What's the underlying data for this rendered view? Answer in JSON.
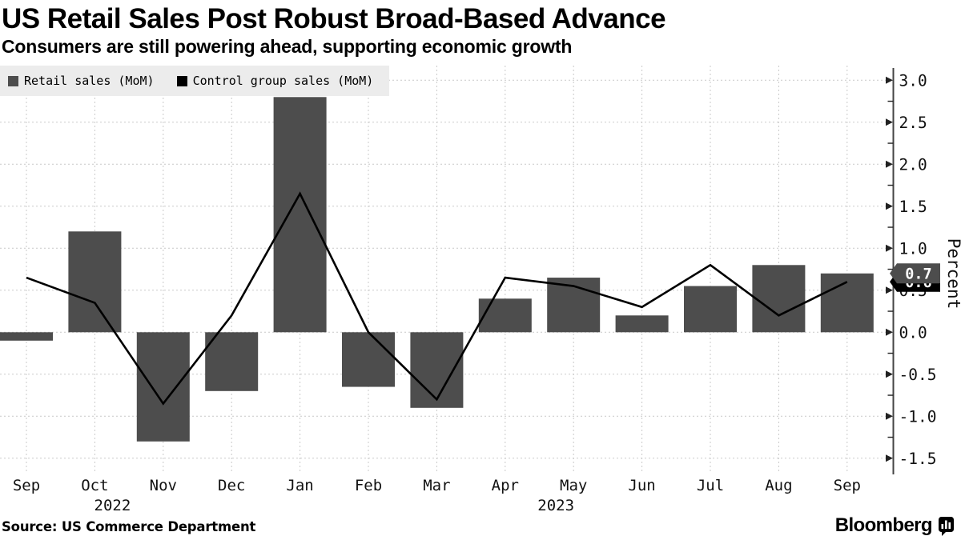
{
  "chart_data": {
    "type": "bar+line",
    "title": "US Retail Sales Post Robust Broad-Based Advance",
    "subtitle": "Consumers are still powering ahead, supporting economic growth",
    "categories": [
      "Sep",
      "Oct",
      "Nov",
      "Dec",
      "Jan",
      "Feb",
      "Mar",
      "Apr",
      "May",
      "Jun",
      "Jul",
      "Aug",
      "Sep"
    ],
    "year_labels": [
      {
        "text": "2022",
        "month_index": 1
      },
      {
        "text": "2023",
        "month_index": 8
      }
    ],
    "series": [
      {
        "name": "Retail sales (MoM)",
        "type": "bar",
        "color": "#4d4d4d",
        "values": [
          -0.1,
          1.2,
          -1.3,
          -0.7,
          2.8,
          -0.65,
          -0.9,
          0.4,
          0.65,
          0.2,
          0.55,
          0.8,
          0.7
        ]
      },
      {
        "name": "Control group sales (MoM)",
        "type": "line",
        "color": "#000000",
        "values": [
          0.65,
          0.35,
          -0.85,
          0.2,
          1.65,
          0.0,
          -0.8,
          0.65,
          0.55,
          0.3,
          0.8,
          0.2,
          0.6
        ]
      }
    ],
    "y_axis": {
      "label": "Percent",
      "position": "right",
      "tick_labels": [
        "3.0",
        "2.5",
        "2.0",
        "1.5",
        "1.0",
        "0.5",
        "0.0",
        "-0.5",
        "-1.0",
        "-1.5"
      ],
      "ylim": [
        -1.5,
        3.0
      ],
      "minor_tick_step": 0.25
    },
    "end_labels": [
      {
        "text": "0.7",
        "value": 0.7,
        "bg": "#4d4d4d",
        "fg": "#ffffff"
      },
      {
        "text": "0.6",
        "value": 0.6,
        "bg": "#000000",
        "fg": "#ffffff"
      }
    ],
    "grid": true,
    "legend_position": "top-left",
    "colors": {
      "grid": "#c9c9c9",
      "background": "#ffffff",
      "legend_bg": "#ececec"
    }
  },
  "footer": {
    "source": "Source: US Commerce Department",
    "brand": "Bloomberg"
  }
}
